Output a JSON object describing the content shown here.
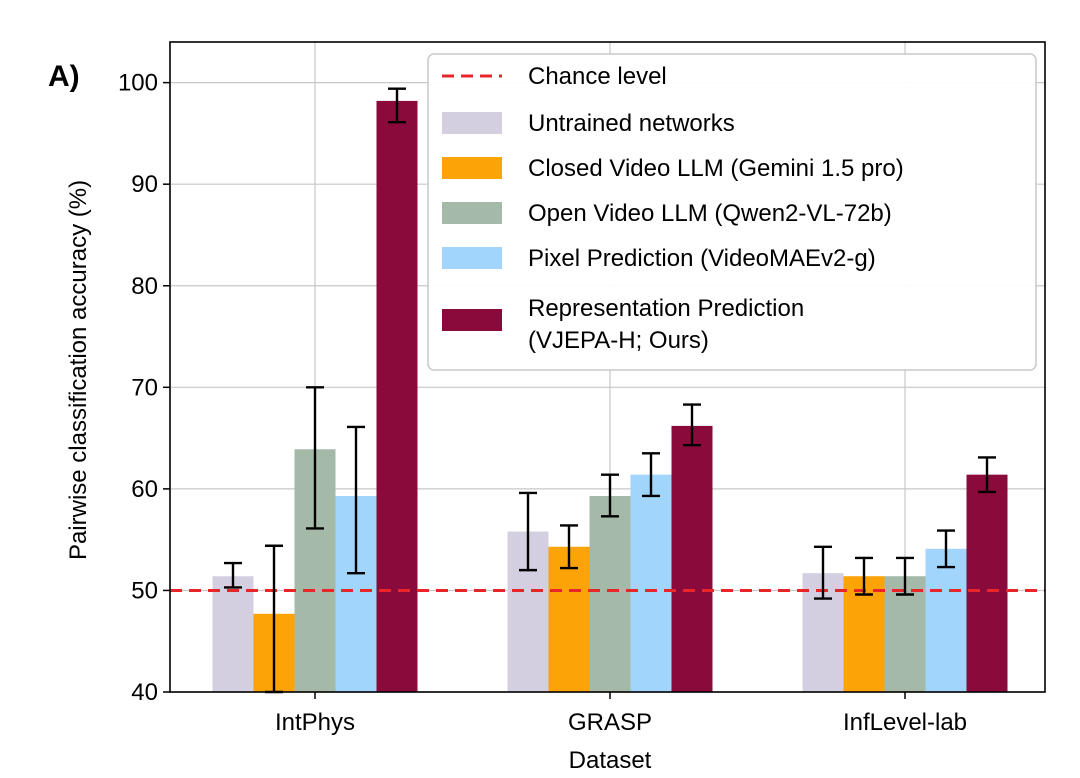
{
  "chart_data": {
    "type": "bar",
    "panel_label": "A)",
    "title": "",
    "xlabel": "Dataset",
    "ylabel": "Pairwise classification accuracy (%)",
    "ylim": [
      40,
      104
    ],
    "yticks": [
      40,
      50,
      60,
      70,
      80,
      90,
      100
    ],
    "grid": true,
    "legend_position": "top-right",
    "categories": [
      "IntPhys",
      "GRASP",
      "InfLevel-lab"
    ],
    "chance_level": {
      "name": "Chance level",
      "value": 50,
      "color": "#e8262a",
      "style": "dashed"
    },
    "series": [
      {
        "name": "Untrained networks",
        "color": "#d4cfe0",
        "values": [
          51.4,
          55.8,
          51.7
        ],
        "err_low": [
          50.3,
          52.0,
          49.2
        ],
        "err_high": [
          52.7,
          59.6,
          54.3
        ]
      },
      {
        "name": "Closed Video LLM (Gemini 1.5 pro)",
        "color": "#fca307",
        "values": [
          47.7,
          54.3,
          51.4
        ],
        "err_low": [
          40.0,
          52.2,
          49.6
        ],
        "err_high": [
          54.4,
          56.4,
          53.2
        ]
      },
      {
        "name": "Open Video LLM (Qwen2-VL-72b)",
        "color": "#a5b9a9",
        "values": [
          63.9,
          59.3,
          51.4
        ],
        "err_low": [
          56.1,
          57.3,
          49.6
        ],
        "err_high": [
          70.0,
          61.4,
          53.2
        ]
      },
      {
        "name": "Pixel Prediction (VideoMAEv2-g)",
        "color": "#a1d5fb",
        "values": [
          59.3,
          61.4,
          54.1
        ],
        "err_low": [
          51.7,
          59.3,
          52.3
        ],
        "err_high": [
          66.1,
          63.5,
          55.9
        ]
      },
      {
        "name": "Representation Prediction",
        "name_line2": "(VJEPA-H; Ours)",
        "color": "#8b0a3c",
        "values": [
          98.2,
          66.2,
          61.4
        ],
        "err_low": [
          96.1,
          64.3,
          59.7
        ],
        "err_high": [
          99.4,
          68.3,
          63.1
        ]
      }
    ]
  }
}
